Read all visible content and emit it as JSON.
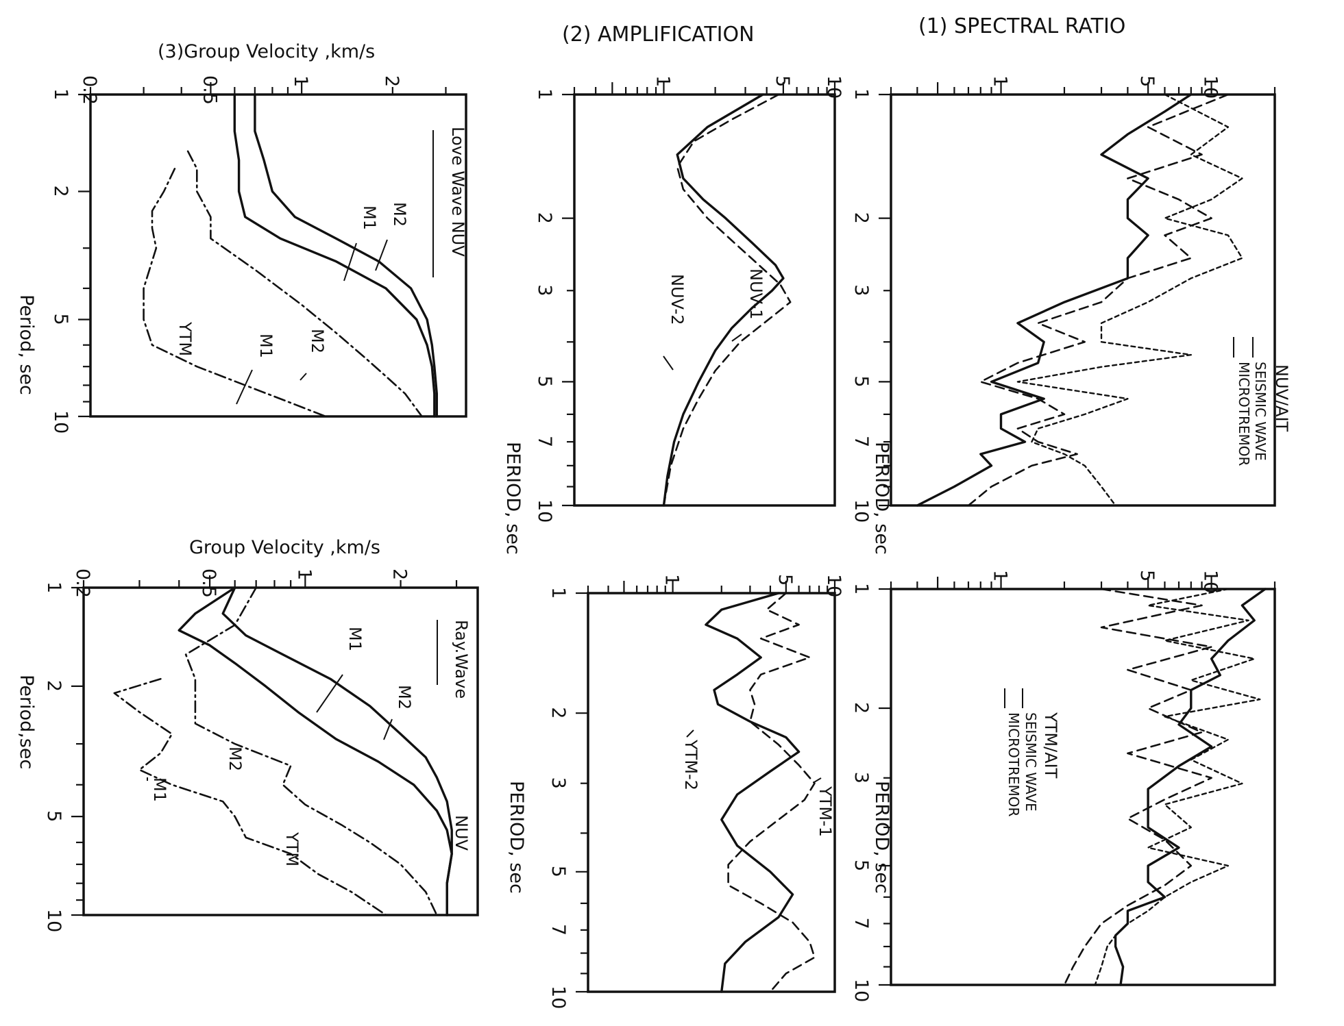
{
  "colors": {
    "ink": "#111111",
    "background": "#ffffff"
  },
  "row_titles": {
    "spectral": "(1) SPECTRAL  RATIO",
    "amplification": "(2) AMPLIFICATION",
    "velocity": "(3)Group Velocity ,km/s",
    "velocity_lower": "Group Velocity ,km/s"
  },
  "chart_data": [
    {
      "id": "p1",
      "type": "line",
      "title": "(1) SPECTRAL  RATIO",
      "xlabel": "PERIOD, sec",
      "ylabel": "",
      "xscale": "log",
      "yscale": "log",
      "xlim": [
        1,
        10
      ],
      "ylim": [
        0.3,
        20
      ],
      "x_ticks": [
        "1",
        "2",
        "3",
        "5",
        "7",
        "10"
      ],
      "y_ticks": [
        "1",
        "5",
        "10"
      ],
      "annotations": [
        {
          "text": "NUV/AIT"
        },
        {
          "text": "SEISMIC WAVE"
        },
        {
          "text": "MICROTREMOR"
        }
      ],
      "series": [
        {
          "name": "MICROTREMOR",
          "style": "solid",
          "x": [
            1,
            1.1,
            1.25,
            1.4,
            1.6,
            1.8,
            2.0,
            2.2,
            2.5,
            2.8,
            3.2,
            3.6,
            4.0,
            4.5,
            5.0,
            5.5,
            6.0,
            6.5,
            7.0,
            7.5,
            8.0,
            9.0,
            10.0
          ],
          "y": [
            8,
            6,
            4,
            3,
            5,
            4,
            4,
            5,
            4,
            4,
            2,
            1.2,
            1.6,
            1.5,
            0.9,
            1.6,
            1.0,
            1.0,
            1.3,
            0.8,
            0.9,
            0.6,
            0.4
          ]
        },
        {
          "name": "SEISMIC WAVE",
          "style": "dash",
          "x": [
            1,
            1.2,
            1.4,
            1.6,
            1.8,
            2.0,
            2.2,
            2.5,
            2.8,
            3.2,
            3.6,
            4.0,
            4.5,
            5.0,
            5.5,
            6.0,
            6.5,
            7.0,
            7.5,
            8.0,
            9.0,
            10.0
          ],
          "y": [
            12,
            5,
            9,
            4,
            7,
            10,
            6,
            8,
            4,
            3,
            1.5,
            2.5,
            1.2,
            0.8,
            1.5,
            2.0,
            1.2,
            1.5,
            2.3,
            1.4,
            0.9,
            0.7
          ]
        },
        {
          "name": "SEISMIC WAVE",
          "style": "dot",
          "x": [
            1,
            1.2,
            1.4,
            1.6,
            1.8,
            2.0,
            2.2,
            2.5,
            2.8,
            3.2,
            3.6,
            4.0,
            4.3,
            4.6,
            5.0,
            5.5,
            6.0,
            6.5,
            7.0,
            7.5,
            8.0,
            9.0,
            10.0
          ],
          "y": [
            6,
            12,
            8,
            14,
            10,
            6,
            12,
            14,
            8,
            5,
            3,
            3,
            8,
            3,
            1.2,
            4,
            2.5,
            1.5,
            1.4,
            2.0,
            2.5,
            3.0,
            3.5
          ]
        }
      ]
    },
    {
      "id": "p2",
      "type": "line",
      "title": "(2) AMPLIFICATION",
      "xlabel": "PERIOD, sec",
      "ylabel": "",
      "xscale": "log",
      "yscale": "log",
      "xlim": [
        1,
        10
      ],
      "ylim": [
        0.3,
        10
      ],
      "x_ticks": [
        "1",
        "2",
        "3",
        "5",
        "7",
        "10"
      ],
      "y_ticks": [
        "1",
        "5",
        "10"
      ],
      "series": [
        {
          "name": "NUV-1",
          "style": "solid",
          "x": [
            1.0,
            1.2,
            1.4,
            1.6,
            1.8,
            2.0,
            2.3,
            2.6,
            2.8,
            3.0,
            3.3,
            3.7,
            4.2,
            5.0,
            6.0,
            7.0,
            8.5,
            10.0
          ],
          "y": [
            3.8,
            1.8,
            1.2,
            1.3,
            1.7,
            2.3,
            3.3,
            4.5,
            5.0,
            4.3,
            3.3,
            2.5,
            2.0,
            1.6,
            1.3,
            1.15,
            1.05,
            1.0
          ]
        },
        {
          "name": "NUV-2",
          "style": "dash",
          "x": [
            1.0,
            1.15,
            1.3,
            1.5,
            1.7,
            2.0,
            2.3,
            2.6,
            2.9,
            3.2,
            3.5,
            4.0,
            4.7,
            5.5,
            6.5,
            8.0,
            10.0
          ],
          "y": [
            4.7,
            2.5,
            1.5,
            1.2,
            1.3,
            1.8,
            2.6,
            3.6,
            4.8,
            5.5,
            4.2,
            2.8,
            2.0,
            1.6,
            1.3,
            1.1,
            1.0
          ]
        }
      ]
    },
    {
      "id": "p3",
      "type": "line",
      "title": "(3)Group Velocity ,km/s",
      "xlabel": "Period, sec",
      "ylabel": "",
      "xscale": "log",
      "yscale": "log",
      "xlim": [
        1,
        10
      ],
      "ylim": [
        0.2,
        3.5
      ],
      "x_ticks": [
        "1",
        "2",
        "5",
        "10"
      ],
      "y_ticks": [
        "0.2",
        "0.5",
        "1",
        "2"
      ],
      "annotations": [
        {
          "text": "Love Wave NUV"
        },
        {
          "text": "M2"
        },
        {
          "text": "M1"
        },
        {
          "text": "M2"
        },
        {
          "text": "M1"
        },
        {
          "text": "YTM"
        }
      ],
      "series": [
        {
          "name": "M2",
          "style": "solid",
          "x": [
            1.0,
            1.3,
            1.6,
            2.0,
            2.4,
            2.8,
            3.3,
            4.0,
            5.0,
            6.0,
            7.0,
            8.5,
            10.0
          ],
          "y": [
            0.7,
            0.7,
            0.75,
            0.8,
            0.95,
            1.3,
            1.8,
            2.3,
            2.6,
            2.7,
            2.75,
            2.8,
            2.8
          ]
        },
        {
          "name": "M1",
          "style": "solid",
          "x": [
            1.0,
            1.3,
            1.6,
            2.0,
            2.4,
            2.8,
            3.3,
            4.0,
            5.0,
            6.0,
            7.0,
            8.5,
            10.0
          ],
          "y": [
            0.6,
            0.6,
            0.62,
            0.62,
            0.65,
            0.85,
            1.3,
            1.9,
            2.4,
            2.6,
            2.7,
            2.75,
            2.75
          ]
        },
        {
          "name": "M2",
          "style": "dashdot",
          "x": [
            1.5,
            1.7,
            2.0,
            2.4,
            2.8,
            3.5,
            4.5,
            5.5,
            6.5,
            7.5,
            8.5,
            10.0
          ],
          "y": [
            0.42,
            0.45,
            0.45,
            0.5,
            0.5,
            0.7,
            1.0,
            1.3,
            1.6,
            1.9,
            2.2,
            2.5
          ]
        },
        {
          "name": "M1",
          "style": "dashdot",
          "x": [
            1.7,
            2.0,
            2.3,
            2.6,
            3.0,
            4.0,
            5.0,
            6.0,
            7.0,
            8.0,
            9.0,
            10.0
          ],
          "y": [
            0.38,
            0.35,
            0.32,
            0.32,
            0.33,
            0.3,
            0.3,
            0.32,
            0.45,
            0.65,
            0.9,
            1.2
          ]
        }
      ]
    },
    {
      "id": "p4",
      "type": "line",
      "title": "",
      "xlabel": "PERIOD, sec",
      "ylabel": "",
      "xscale": "log",
      "yscale": "log",
      "xlim": [
        1,
        10
      ],
      "ylim": [
        0.3,
        20
      ],
      "x_ticks": [
        "1",
        "2",
        "3",
        "5",
        "7",
        "10"
      ],
      "y_ticks": [
        "1",
        "5",
        "10"
      ],
      "annotations": [
        {
          "text": "YTM/AIT"
        },
        {
          "text": "SEISMIC WAVE"
        },
        {
          "text": "MICROTREMOR"
        }
      ],
      "series": [
        {
          "name": "MICROTREMOR",
          "style": "solid",
          "x": [
            1.0,
            1.1,
            1.2,
            1.35,
            1.5,
            1.65,
            1.8,
            2.0,
            2.2,
            2.5,
            2.8,
            3.2,
            3.6,
            4.0,
            4.5,
            5.0,
            5.5,
            6.0,
            6.5,
            7.0,
            7.5,
            8.0,
            9.0,
            10.0
          ],
          "y": [
            18,
            14,
            16,
            12,
            10,
            11,
            8,
            8,
            7,
            10,
            7,
            5,
            5,
            5,
            7,
            5,
            5,
            6,
            4,
            4,
            3.5,
            3.5,
            3.8,
            3.7
          ]
        },
        {
          "name": "SEISMIC WAVE",
          "style": "dash",
          "x": [
            1.0,
            1.1,
            1.25,
            1.4,
            1.6,
            1.8,
            2.0,
            2.3,
            2.6,
            3.0,
            3.4,
            3.8,
            4.3,
            5.0,
            5.6,
            6.3,
            7.0,
            8.0,
            9.0,
            10.0
          ],
          "y": [
            3,
            9,
            3,
            10,
            4,
            8,
            5,
            9,
            4,
            10,
            6,
            4,
            6,
            8,
            6,
            4,
            3,
            2.5,
            2.2,
            2.0
          ]
        },
        {
          "name": "SEISMIC WAVE",
          "style": "dot",
          "x": [
            1.0,
            1.1,
            1.2,
            1.35,
            1.5,
            1.7,
            1.9,
            2.1,
            2.4,
            2.7,
            3.1,
            3.5,
            4.0,
            4.5,
            5.0,
            5.5,
            6.0,
            6.5,
            7.0,
            7.5,
            8.0,
            9.0,
            10.0
          ],
          "y": [
            12,
            5,
            15,
            6,
            16,
            8,
            17,
            6,
            12,
            8,
            14,
            6,
            8,
            5,
            12,
            8,
            6,
            5,
            4,
            3.5,
            3.2,
            3.0,
            2.8
          ]
        }
      ]
    },
    {
      "id": "p5",
      "type": "line",
      "title": "",
      "xlabel": "PERIOD, sec",
      "ylabel": "",
      "xscale": "log",
      "yscale": "log",
      "xlim": [
        1,
        10
      ],
      "ylim": [
        0.3,
        10
      ],
      "x_ticks": [
        "1",
        "2",
        "3",
        "5",
        "7",
        "10"
      ],
      "y_ticks": [
        "1",
        "5",
        "10"
      ],
      "series": [
        {
          "name": "YTM-1",
          "style": "solid",
          "x": [
            1.0,
            1.1,
            1.2,
            1.3,
            1.45,
            1.6,
            1.75,
            1.9,
            2.1,
            2.3,
            2.5,
            2.8,
            3.2,
            3.7,
            4.3,
            5.0,
            5.7,
            6.5,
            7.5,
            8.5,
            10.0
          ],
          "y": [
            4.5,
            2.0,
            1.6,
            2.5,
            3.5,
            2.5,
            1.8,
            1.9,
            3.0,
            5.0,
            6.0,
            4.0,
            2.5,
            2.0,
            2.5,
            4.0,
            5.5,
            4.5,
            2.8,
            2.1,
            2.0
          ]
        },
        {
          "name": "YTM-2",
          "style": "dash",
          "x": [
            1.0,
            1.1,
            1.2,
            1.3,
            1.45,
            1.6,
            1.75,
            1.9,
            2.1,
            2.4,
            2.7,
            3.0,
            3.3,
            3.7,
            4.2,
            4.8,
            5.4,
            6.0,
            6.7,
            7.5,
            8.2,
            9.0,
            10.0
          ],
          "y": [
            5.0,
            3.8,
            6.0,
            3.5,
            7.0,
            3.5,
            3.0,
            3.2,
            3.0,
            4.5,
            6.0,
            7.5,
            6.5,
            4.5,
            3.0,
            2.2,
            2.2,
            3.5,
            5.5,
            7.0,
            7.5,
            5.0,
            4.0
          ]
        }
      ]
    },
    {
      "id": "p6",
      "type": "line",
      "title": "Group Velocity ,km/s",
      "xlabel": "Period,sec",
      "ylabel": "",
      "xscale": "log",
      "yscale": "log",
      "xlim": [
        1,
        10
      ],
      "ylim": [
        0.2,
        3.5
      ],
      "x_ticks": [
        "1",
        "2",
        "5",
        "10"
      ],
      "y_ticks": [
        "0.2",
        "0.5",
        "1",
        "2"
      ],
      "annotations": [
        {
          "text": "Ray.Wave"
        },
        {
          "text": "NUV"
        },
        {
          "text": "M1"
        },
        {
          "text": "M2"
        },
        {
          "text": "M1"
        },
        {
          "text": "M2"
        },
        {
          "text": "YTM"
        }
      ],
      "series": [
        {
          "name": "M2",
          "style": "solid",
          "x": [
            1.0,
            1.2,
            1.4,
            1.6,
            1.9,
            2.3,
            2.8,
            3.3,
            3.8,
            4.5,
            5.5,
            6.5,
            8.0,
            10.0
          ],
          "y": [
            0.6,
            0.55,
            0.65,
            0.85,
            1.2,
            1.6,
            2.0,
            2.4,
            2.6,
            2.8,
            2.9,
            2.9,
            2.8,
            2.8
          ]
        },
        {
          "name": "M1",
          "style": "solid",
          "x": [
            1.0,
            1.2,
            1.35,
            1.5,
            1.7,
            2.0,
            2.4,
            2.9,
            3.4,
            4.0,
            4.8,
            5.5,
            6.5,
            8.0,
            10.0
          ],
          "y": [
            0.6,
            0.45,
            0.4,
            0.5,
            0.6,
            0.75,
            0.95,
            1.25,
            1.7,
            2.2,
            2.6,
            2.8,
            2.9,
            2.8,
            2.8
          ]
        },
        {
          "name": "M2",
          "style": "dashdot",
          "x": [
            1.0,
            1.3,
            1.6,
            1.9,
            2.2,
            2.6,
            3.0,
            3.5,
            4.0,
            4.6,
            5.3,
            6.0,
            7.0,
            8.5,
            10.0
          ],
          "y": [
            0.7,
            0.6,
            0.42,
            0.45,
            0.45,
            0.45,
            0.6,
            0.9,
            0.85,
            1.0,
            1.3,
            1.6,
            2.0,
            2.4,
            2.6
          ]
        },
        {
          "name": "M1",
          "style": "dashdot",
          "x": [
            1.9,
            2.1,
            2.4,
            2.8,
            3.2,
            3.6,
            4.0,
            4.5,
            5.0,
            5.8,
            6.5,
            7.5,
            8.5,
            10.0
          ],
          "y": [
            0.35,
            0.25,
            0.3,
            0.38,
            0.35,
            0.3,
            0.38,
            0.55,
            0.6,
            0.65,
            0.9,
            1.1,
            1.4,
            1.8
          ]
        }
      ]
    }
  ]
}
